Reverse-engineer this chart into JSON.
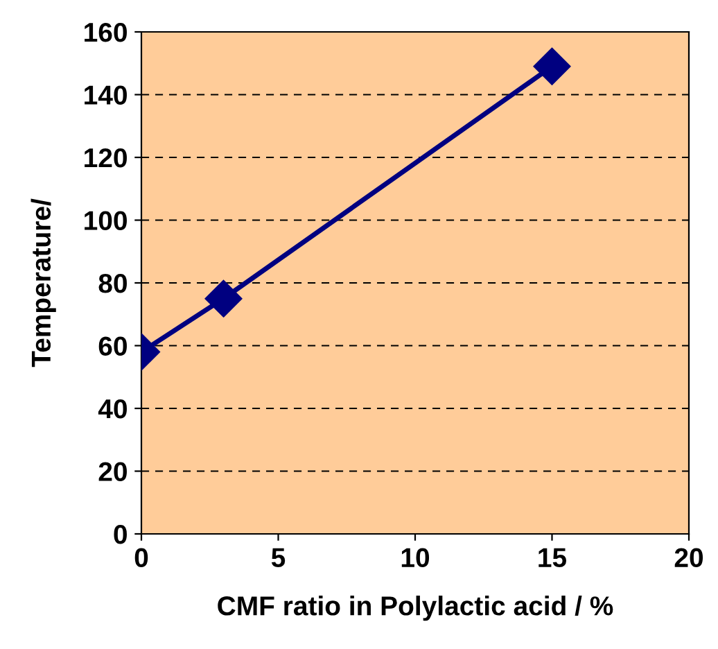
{
  "chart_data": {
    "type": "line",
    "xlabel": "CMF ratio in Polylactic acid / %",
    "ylabel": "Temperature/",
    "x": [
      0,
      3,
      15
    ],
    "series": [
      {
        "color": "#000080",
        "values": [
          58,
          75,
          149
        ]
      }
    ],
    "xlim": [
      0,
      20
    ],
    "xticks": [
      0,
      5,
      10,
      15,
      20
    ],
    "ylim": [
      0,
      160
    ],
    "yticks": [
      0,
      20,
      40,
      60,
      80,
      100,
      120,
      140,
      160
    ],
    "grid": "y",
    "marker": "diamond",
    "line_style": "solid"
  }
}
